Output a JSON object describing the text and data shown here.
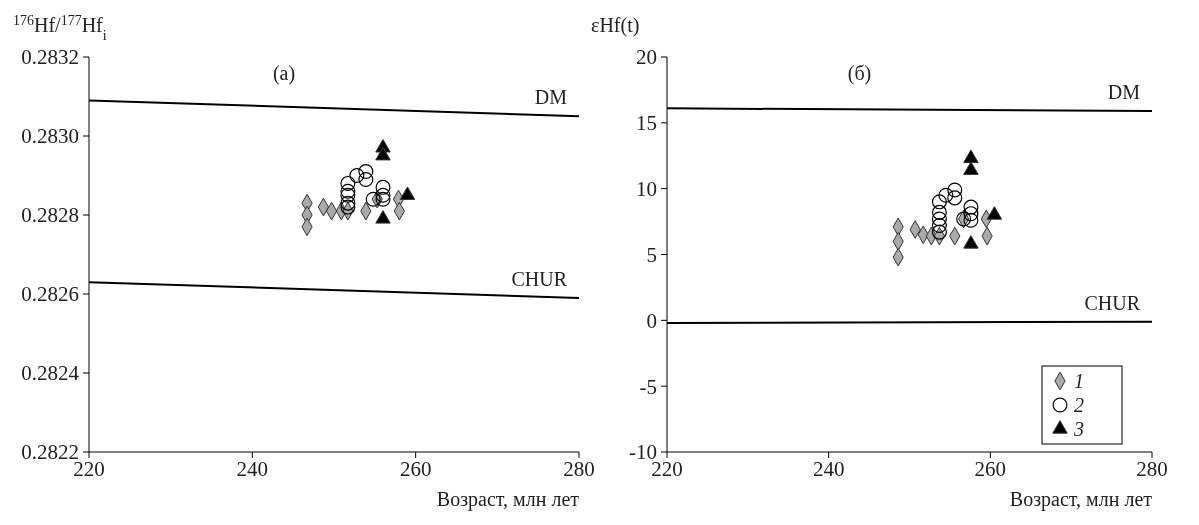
{
  "chart_data": [
    {
      "type": "scatter",
      "title": "(a)",
      "xlabel": "Возраст, млн лет",
      "ylabel": "$^{176}$Hf/$^{177}$Hf$_{i}$",
      "xlim": [
        220,
        280
      ],
      "xticks": [
        220,
        240,
        260,
        280
      ],
      "ylim": [
        0.2822,
        0.2832
      ],
      "yticks": [
        0.2822,
        0.2824,
        0.2826,
        0.2828,
        {
          "value": 0.283,
          "label": "0.2830"
        },
        0.2832
      ],
      "legend": false,
      "series": [
        {
          "name": "DM",
          "type": "line",
          "color": "#000000",
          "x": [
            220,
            280
          ],
          "values": [
            0.28309,
            0.28305
          ]
        },
        {
          "name": "CHUR",
          "type": "line",
          "color": "#000000",
          "x": [
            220,
            280
          ],
          "values": [
            0.28263,
            0.28259
          ]
        },
        {
          "marker": "diamond",
          "color": "#aaaaaa",
          "x": [
            246.7,
            246.7,
            246.7,
            248.7,
            249.7,
            250.9,
            251.7,
            253.9,
            255.3,
            257.9,
            258
          ],
          "values": [
            0.28283,
            0.2828,
            0.28277,
            0.28282,
            0.28281,
            0.28281,
            0.28281,
            0.28281,
            0.28284,
            0.28284,
            0.28281
          ]
        },
        {
          "marker": "circle",
          "color": "#000000",
          "x": [
            251.7,
            251.7,
            251.7,
            251.7,
            251.7,
            252.8,
            253.9,
            253.9,
            254.8,
            256,
            256,
            256
          ],
          "values": [
            0.28288,
            0.28286,
            0.28285,
            0.28283,
            0.28282,
            0.2829,
            0.28291,
            0.28289,
            0.28284,
            0.28287,
            0.28285,
            0.28284
          ]
        },
        {
          "marker": "triangle",
          "color": "#000000",
          "x": [
            256,
            256,
            256,
            259
          ],
          "values": [
            0.28297,
            0.28295,
            0.28279,
            0.28285
          ]
        }
      ]
    },
    {
      "type": "scatter",
      "title": "(б)",
      "xlabel": "Возраст, млн лет",
      "ylabel": "εHf(t)",
      "xlim": [
        220,
        280
      ],
      "xticks": [
        220,
        240,
        260,
        280
      ],
      "ylim": [
        -10,
        20
      ],
      "yticks": [
        -10,
        -5,
        0,
        5,
        10,
        15,
        20
      ],
      "legend": "bottom right",
      "series": [
        {
          "name": "DM",
          "type": "line",
          "color": "#000000",
          "x": [
            220,
            280
          ],
          "values": [
            16.1,
            15.9
          ]
        },
        {
          "name": "CHUR",
          "type": "line",
          "color": "#000000",
          "x": [
            220,
            280
          ],
          "values": [
            -0.2,
            -0.1
          ]
        },
        {
          "name": "1",
          "marker": "diamond",
          "color": "#aaaaaa",
          "x": [
            248.6,
            248.6,
            248.6,
            250.7,
            251.7,
            252.7,
            253.7,
            255.6,
            256.7,
            259.5,
            259.6
          ],
          "values": [
            7.1,
            6,
            4.8,
            6.9,
            6.5,
            6.4,
            6.4,
            6.4,
            7.7,
            7.7,
            6.4
          ]
        },
        {
          "name": "2",
          "marker": "circle",
          "color": "#000000",
          "x": [
            253.7,
            253.7,
            253.7,
            253.7,
            253.7,
            254.5,
            255.6,
            255.6,
            256.7,
            257.6,
            257.6,
            257.6
          ],
          "values": [
            9,
            8.2,
            7.7,
            7.2,
            6.7,
            9.5,
            9.9,
            9.3,
            7.7,
            8.6,
            8.1,
            7.6
          ]
        },
        {
          "name": "3",
          "marker": "triangle",
          "color": "#000000",
          "x": [
            257.6,
            257.6,
            257.6,
            260.5
          ],
          "values": [
            12.3,
            11.4,
            5.8,
            8
          ]
        }
      ]
    }
  ]
}
